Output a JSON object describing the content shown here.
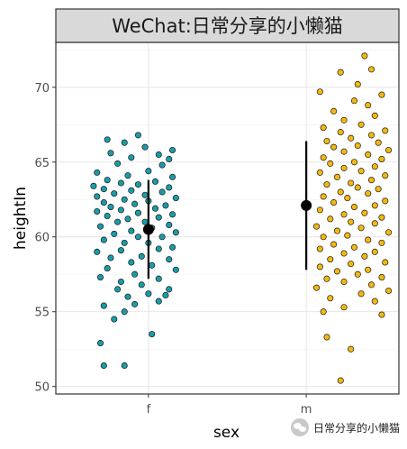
{
  "chart_data": {
    "type": "scatter",
    "title": "WeChat:日常分享的小懒猫",
    "xlabel": "sex",
    "ylabel": "heightIn",
    "categories": [
      "f",
      "m"
    ],
    "ylim": [
      49.5,
      73
    ],
    "yticks": [
      50,
      55,
      60,
      65,
      70
    ],
    "grid": true,
    "colors": {
      "f": "#1a9ca8",
      "m": "#f2b90f",
      "summary": "#000000",
      "strip": "#d9d9d9"
    },
    "summary": [
      {
        "category": "f",
        "mean": 60.5,
        "low": 57.2,
        "high": 63.8
      },
      {
        "category": "m",
        "mean": 62.1,
        "low": 57.8,
        "high": 66.4
      }
    ],
    "points": {
      "f": [
        [
          0.14,
          51.4
        ],
        [
          0.2,
          51.4
        ],
        [
          0.13,
          52.9
        ],
        [
          0.28,
          53.5
        ],
        [
          0.17,
          54.5
        ],
        [
          0.2,
          55.0
        ],
        [
          0.14,
          55.4
        ],
        [
          0.23,
          55.5
        ],
        [
          0.3,
          55.7
        ],
        [
          0.21,
          56.0
        ],
        [
          0.32,
          56.1
        ],
        [
          0.27,
          56.2
        ],
        [
          0.18,
          56.5
        ],
        [
          0.33,
          56.5
        ],
        [
          0.25,
          56.8
        ],
        [
          0.19,
          57.0
        ],
        [
          0.3,
          57.2
        ],
        [
          0.23,
          57.5
        ],
        [
          0.35,
          57.8
        ],
        [
          0.13,
          57.3
        ],
        [
          0.15,
          57.9
        ],
        [
          0.22,
          58.3
        ],
        [
          0.28,
          58.1
        ],
        [
          0.33,
          58.5
        ],
        [
          0.16,
          58.6
        ],
        [
          0.25,
          58.7
        ],
        [
          0.12,
          59.0
        ],
        [
          0.19,
          59.1
        ],
        [
          0.3,
          59.2
        ],
        [
          0.34,
          59.3
        ],
        [
          0.2,
          59.6
        ],
        [
          0.27,
          59.6
        ],
        [
          0.14,
          59.8
        ],
        [
          0.24,
          60.0
        ],
        [
          0.31,
          60.0
        ],
        [
          0.17,
          60.2
        ],
        [
          0.35,
          60.3
        ],
        [
          0.22,
          60.4
        ],
        [
          0.28,
          60.6
        ],
        [
          0.13,
          60.7
        ],
        [
          0.33,
          60.8
        ],
        [
          0.18,
          61.0
        ],
        [
          0.26,
          61.0
        ],
        [
          0.21,
          61.2
        ],
        [
          0.3,
          61.3
        ],
        [
          0.15,
          61.4
        ],
        [
          0.34,
          61.5
        ],
        [
          0.24,
          61.6
        ],
        [
          0.12,
          61.7
        ],
        [
          0.19,
          61.8
        ],
        [
          0.29,
          61.9
        ],
        [
          0.16,
          62.0
        ],
        [
          0.32,
          62.1
        ],
        [
          0.23,
          62.2
        ],
        [
          0.14,
          62.3
        ],
        [
          0.27,
          62.4
        ],
        [
          0.2,
          62.5
        ],
        [
          0.35,
          62.6
        ],
        [
          0.12,
          62.7
        ],
        [
          0.26,
          62.8
        ],
        [
          0.17,
          62.9
        ],
        [
          0.31,
          63.0
        ],
        [
          0.22,
          63.1
        ],
        [
          0.14,
          63.2
        ],
        [
          0.33,
          63.3
        ],
        [
          0.11,
          63.4
        ],
        [
          0.24,
          63.5
        ],
        [
          0.19,
          63.6
        ],
        [
          0.29,
          63.7
        ],
        [
          0.15,
          63.8
        ],
        [
          0.34,
          64.0
        ],
        [
          0.21,
          64.1
        ],
        [
          0.12,
          64.3
        ],
        [
          0.27,
          64.4
        ],
        [
          0.31,
          64.8
        ],
        [
          0.18,
          64.9
        ],
        [
          0.33,
          65.2
        ],
        [
          0.22,
          65.3
        ],
        [
          0.3,
          65.5
        ],
        [
          0.16,
          65.6
        ],
        [
          0.34,
          65.8
        ],
        [
          0.26,
          66.0
        ],
        [
          0.2,
          66.3
        ],
        [
          0.15,
          66.5
        ],
        [
          0.24,
          66.8
        ]
      ],
      "m": [
        [
          0.83,
          50.4
        ],
        [
          0.86,
          52.5
        ],
        [
          0.79,
          53.3
        ],
        [
          0.95,
          54.8
        ],
        [
          0.78,
          55.0
        ],
        [
          0.84,
          55.3
        ],
        [
          0.93,
          55.7
        ],
        [
          0.8,
          55.9
        ],
        [
          0.89,
          56.2
        ],
        [
          0.97,
          56.4
        ],
        [
          0.76,
          56.6
        ],
        [
          0.92,
          56.8
        ],
        [
          0.84,
          57.0
        ],
        [
          0.79,
          57.2
        ],
        [
          0.95,
          57.3
        ],
        [
          0.88,
          57.5
        ],
        [
          0.82,
          57.7
        ],
        [
          0.91,
          57.8
        ],
        [
          0.77,
          58.0
        ],
        [
          0.86,
          58.2
        ],
        [
          0.96,
          58.3
        ],
        [
          0.8,
          58.5
        ],
        [
          0.9,
          58.7
        ],
        [
          0.84,
          58.9
        ],
        [
          0.93,
          59.0
        ],
        [
          0.77,
          59.2
        ],
        [
          0.87,
          59.3
        ],
        [
          0.81,
          59.5
        ],
        [
          0.95,
          59.6
        ],
        [
          0.91,
          59.8
        ],
        [
          0.78,
          60.0
        ],
        [
          0.85,
          60.1
        ],
        [
          0.97,
          60.3
        ],
        [
          0.82,
          60.4
        ],
        [
          0.89,
          60.6
        ],
        [
          0.76,
          60.7
        ],
        [
          0.93,
          60.9
        ],
        [
          0.86,
          61.0
        ],
        [
          0.8,
          61.2
        ],
        [
          0.95,
          61.3
        ],
        [
          0.84,
          61.5
        ],
        [
          0.9,
          61.6
        ],
        [
          0.77,
          61.8
        ],
        [
          0.87,
          62.0
        ],
        [
          0.93,
          62.1
        ],
        [
          0.81,
          62.3
        ],
        [
          0.96,
          62.4
        ],
        [
          0.85,
          62.6
        ],
        [
          0.78,
          62.7
        ],
        [
          0.91,
          62.9
        ],
        [
          0.83,
          63.0
        ],
        [
          0.94,
          63.2
        ],
        [
          0.88,
          63.3
        ],
        [
          0.79,
          63.5
        ],
        [
          0.86,
          63.6
        ],
        [
          0.92,
          63.8
        ],
        [
          0.82,
          64.0
        ],
        [
          0.96,
          64.1
        ],
        [
          0.77,
          64.3
        ],
        [
          0.89,
          64.4
        ],
        [
          0.84,
          64.6
        ],
        [
          0.93,
          64.7
        ],
        [
          0.8,
          64.9
        ],
        [
          0.87,
          65.0
        ],
        [
          0.95,
          65.2
        ],
        [
          0.78,
          65.3
        ],
        [
          0.91,
          65.5
        ],
        [
          0.84,
          65.7
        ],
        [
          0.97,
          65.8
        ],
        [
          0.81,
          66.0
        ],
        [
          0.88,
          66.1
        ],
        [
          0.94,
          66.3
        ],
        [
          0.79,
          66.4
        ],
        [
          0.86,
          66.6
        ],
        [
          0.92,
          66.8
        ],
        [
          0.83,
          67.0
        ],
        [
          0.96,
          67.1
        ],
        [
          0.78,
          67.3
        ],
        [
          0.89,
          67.5
        ],
        [
          0.84,
          67.8
        ],
        [
          0.93,
          68.1
        ],
        [
          0.81,
          68.4
        ],
        [
          0.91,
          68.8
        ],
        [
          0.87,
          69.1
        ],
        [
          0.95,
          69.5
        ],
        [
          0.77,
          69.7
        ],
        [
          0.88,
          70.2
        ],
        [
          0.83,
          71.0
        ],
        [
          0.92,
          71.2
        ],
        [
          0.9,
          72.1
        ]
      ]
    }
  },
  "watermark": {
    "text": "日常分享的小懒猫",
    "icon": "wechat-icon"
  }
}
